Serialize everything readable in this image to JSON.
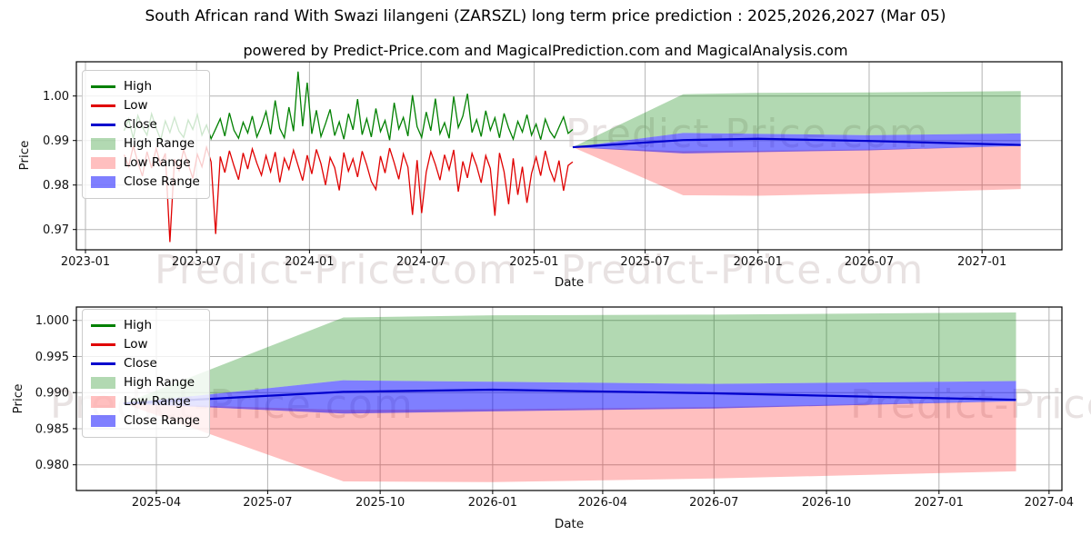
{
  "title": "South African rand With Swazi lilangeni (ZARSZL) long term price prediction : 2025,2026,2027 (Mar 05)",
  "subtitle": "powered by Predict-Price.com and MagicalPrediction.com and MagicalAnalysis.com",
  "watermark": "Predict-Price.com",
  "watermark_pair": "Predict-Price.com - Predict-Price.com",
  "colors": {
    "high": "#008000",
    "low": "#e00000",
    "close": "#0000cd",
    "high_range": "rgba(0,128,0,0.30)",
    "low_range": "rgba(255,0,0,0.25)",
    "close_range": "rgba(0,0,255,0.50)",
    "grid": "#b4b4b4",
    "spine": "#000000",
    "watermark": "rgba(150,125,125,0.22)"
  },
  "legend": {
    "items": [
      {
        "label": "High",
        "swatch": "line",
        "color_key": "high"
      },
      {
        "label": "Low",
        "swatch": "line",
        "color_key": "low"
      },
      {
        "label": "Close",
        "swatch": "line",
        "color_key": "close"
      },
      {
        "label": "High Range",
        "swatch": "patch",
        "color_key": "high_range"
      },
      {
        "label": "Low Range",
        "swatch": "patch",
        "color_key": "low_range"
      },
      {
        "label": "Close Range",
        "swatch": "patch",
        "color_key": "close_range"
      }
    ]
  },
  "chart_data": [
    {
      "type": "line",
      "name": "long-term-history-and-forecast",
      "xlabel": "Date",
      "ylabel": "Price",
      "ylim": [
        0.9655,
        1.0077
      ],
      "grid": true,
      "legend_position": "upper-left",
      "x_ticks": [
        {
          "label": "2023-01",
          "date": "2023-01-01"
        },
        {
          "label": "2023-07",
          "date": "2023-07-01"
        },
        {
          "label": "2024-01",
          "date": "2024-01-01"
        },
        {
          "label": "2024-07",
          "date": "2024-07-01"
        },
        {
          "label": "2025-01",
          "date": "2025-01-01"
        },
        {
          "label": "2025-07",
          "date": "2025-07-01"
        },
        {
          "label": "2026-01",
          "date": "2026-01-01"
        },
        {
          "label": "2026-07",
          "date": "2026-07-01"
        },
        {
          "label": "2027-01",
          "date": "2027-01-01"
        }
      ],
      "y_ticks": [
        {
          "label": "1.00",
          "value": 1.0
        },
        {
          "label": "0.99",
          "value": 0.99
        },
        {
          "label": "0.98",
          "value": 0.98
        },
        {
          "label": "0.97",
          "value": 0.97
        }
      ]
    },
    {
      "type": "line",
      "name": "forecast-detail",
      "xlabel": "Date",
      "ylabel": "Price",
      "ylim": [
        0.97645,
        1.00185
      ],
      "grid": true,
      "legend_position": "upper-left",
      "x_ticks": [
        {
          "label": "2025-04",
          "date": "2025-04-01"
        },
        {
          "label": "2025-07",
          "date": "2025-07-01"
        },
        {
          "label": "2025-10",
          "date": "2025-10-01"
        },
        {
          "label": "2026-01",
          "date": "2026-01-01"
        },
        {
          "label": "2026-04",
          "date": "2026-04-01"
        },
        {
          "label": "2026-07",
          "date": "2026-07-01"
        },
        {
          "label": "2026-10",
          "date": "2026-10-01"
        },
        {
          "label": "2027-01",
          "date": "2027-01-01"
        },
        {
          "label": "2027-04",
          "date": "2027-04-01"
        }
      ],
      "y_ticks": [
        {
          "label": "1.000",
          "value": 1.0
        },
        {
          "label": "0.995",
          "value": 0.995
        },
        {
          "label": "0.990",
          "value": 0.99
        },
        {
          "label": "0.985",
          "value": 0.985
        },
        {
          "label": "0.980",
          "value": 0.98
        }
      ]
    }
  ],
  "historical": {
    "start_date": "2023-03-05",
    "end_date": "2025-03-05",
    "high": [
      0.9922,
      0.9948,
      0.9905,
      0.9956,
      0.993,
      0.9912,
      0.996,
      0.9928,
      0.9902,
      0.9944,
      0.9918,
      0.9952,
      0.9921,
      0.9907,
      0.9946,
      0.9925,
      0.9958,
      0.9912,
      0.9935,
      0.9904,
      0.9926,
      0.9949,
      0.991,
      0.9962,
      0.9923,
      0.9905,
      0.9941,
      0.9917,
      0.9955,
      0.9908,
      0.9933,
      0.9965,
      0.9914,
      0.999,
      0.9927,
      0.9906,
      0.9975,
      0.9921,
      1.0055,
      0.9932,
      1.003,
      0.9915,
      0.9968,
      0.9909,
      0.9938,
      0.997,
      0.9911,
      0.9942,
      0.9903,
      0.996,
      0.9924,
      0.9993,
      0.9913,
      0.9949,
      0.9908,
      0.9972,
      0.992,
      0.9945,
      0.9901,
      0.9985,
      0.9926,
      0.9952,
      0.991,
      1.0002,
      0.9931,
      0.9907,
      0.9964,
      0.9922,
      0.9994,
      0.9915,
      0.994,
      0.9905,
      0.9999,
      0.9929,
      0.9955,
      1.0005,
      0.9918,
      0.9947,
      0.9909,
      0.9967,
      0.9923,
      0.9951,
      0.9906,
      0.9961,
      0.9928,
      0.9903,
      0.9943,
      0.9919,
      0.9958,
      0.9912,
      0.9937,
      0.9902,
      0.9948,
      0.9921,
      0.9906,
      0.993,
      0.9953,
      0.9916,
      0.9925
    ],
    "low": [
      0.9868,
      0.9842,
      0.9888,
      0.9851,
      0.982,
      0.9875,
      0.9838,
      0.9882,
      0.9846,
      0.9871,
      0.9672,
      0.9858,
      0.9833,
      0.9879,
      0.9847,
      0.9815,
      0.9869,
      0.9841,
      0.9885,
      0.9852,
      0.969,
      0.9864,
      0.9828,
      0.9877,
      0.9843,
      0.9812,
      0.9872,
      0.9836,
      0.9881,
      0.9849,
      0.9822,
      0.9866,
      0.983,
      0.9874,
      0.9806,
      0.986,
      0.9835,
      0.9878,
      0.9844,
      0.981,
      0.9867,
      0.9825,
      0.988,
      0.9848,
      0.98,
      0.9862,
      0.9839,
      0.9788,
      0.9873,
      0.9831,
      0.9859,
      0.9818,
      0.9876,
      0.9845,
      0.9808,
      0.979,
      0.9865,
      0.9827,
      0.9883,
      0.985,
      0.9813,
      0.987,
      0.984,
      0.9733,
      0.9856,
      0.9737,
      0.9829,
      0.9875,
      0.9846,
      0.9811,
      0.9868,
      0.9834,
      0.9879,
      0.9785,
      0.9853,
      0.9816,
      0.9871,
      0.9843,
      0.9805,
      0.9866,
      0.9837,
      0.9731,
      0.9872,
      0.983,
      0.9757,
      0.986,
      0.9778,
      0.9841,
      0.976,
      0.9826,
      0.9863,
      0.9821,
      0.9877,
      0.9835,
      0.9809,
      0.9855,
      0.9787,
      0.9844,
      0.9852
    ]
  },
  "forecast": {
    "dates": [
      "2025-03-05",
      "2025-09-01",
      "2026-01-01",
      "2026-07-01",
      "2027-03-05"
    ],
    "close": [
      0.9885,
      0.9901,
      0.9904,
      0.9899,
      0.989
    ],
    "close_range_upper": [
      0.9885,
      0.9917,
      0.9915,
      0.9912,
      0.9916
    ],
    "close_range_lower": [
      0.9885,
      0.9871,
      0.9874,
      0.9878,
      0.9888
    ],
    "high_range_upper": [
      0.9885,
      1.0004,
      1.0007,
      1.0008,
      1.0011
    ],
    "high_range_lower": [
      0.9885,
      0.9917,
      0.9915,
      0.9912,
      0.9916
    ],
    "low_range_upper": [
      0.9885,
      0.9876,
      0.9877,
      0.988,
      0.9888
    ],
    "low_range_lower": [
      0.9885,
      0.9777,
      0.9776,
      0.9781,
      0.9791
    ]
  }
}
